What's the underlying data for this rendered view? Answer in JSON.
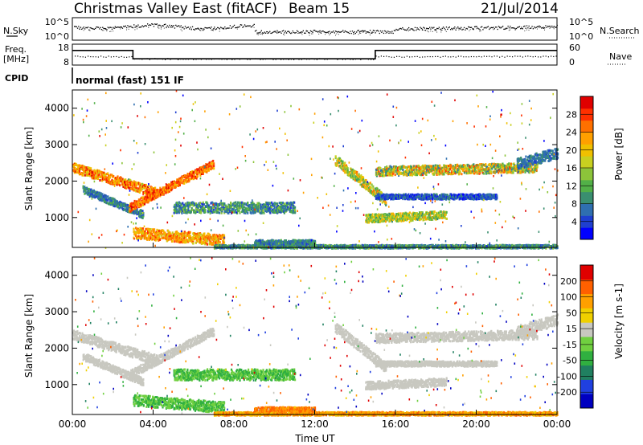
{
  "header": {
    "title": "Christmas Valley East (fitACF)",
    "beam": "Beam 15",
    "date": "21/Jul/2014"
  },
  "chart_data": [
    {
      "type": "line",
      "panel": "noise",
      "left_label": "N.Sky",
      "right_label": "N.Search",
      "left_ticks": [
        "10^5",
        "10^0"
      ],
      "right_ticks": [
        "10^5",
        "10^0"
      ]
    },
    {
      "type": "line",
      "panel": "frequency",
      "left_label_lines": [
        "Freq.",
        "[MHz]"
      ],
      "right_label": "Nave",
      "left_ticks": [
        18,
        8
      ],
      "right_ticks": [
        60,
        0
      ],
      "freq_series": [
        {
          "t": 0.0,
          "v": 15
        },
        {
          "t": 3.0,
          "v": 15
        },
        {
          "t": 3.0,
          "v": 11
        },
        {
          "t": 15.0,
          "v": 11
        },
        {
          "t": 15.0,
          "v": 15
        },
        {
          "t": 24.0,
          "v": 15
        }
      ]
    },
    {
      "type": "table",
      "panel": "cpid",
      "label": "CPID",
      "text": "normal (fast) 151 IF"
    },
    {
      "type": "heatmap",
      "panel": "power",
      "ylabel": "Slant Range [km]",
      "ylim": [
        180,
        4500
      ],
      "yticks": [
        1000,
        2000,
        3000,
        4000
      ],
      "colorbar_label": "Power [dB]",
      "colorbar_ticks": [
        4,
        8,
        12,
        16,
        20,
        24,
        28
      ],
      "colorbar_colors": [
        "#0000ff",
        "#1f3fd0",
        "#2f6fb0",
        "#3a8f70",
        "#52b048",
        "#8cc43a",
        "#c8d020",
        "#f0c000",
        "#ffa000",
        "#ff7000",
        "#ff3000",
        "#e00000"
      ]
    },
    {
      "type": "heatmap",
      "panel": "velocity",
      "ylabel": "Slant Range [km]",
      "ylim": [
        180,
        4500
      ],
      "yticks": [
        1000,
        2000,
        3000,
        4000
      ],
      "colorbar_label": "Velocity [m s-1]",
      "colorbar_ticks": [
        200,
        100,
        50,
        15,
        -15,
        -50,
        -100,
        -200
      ],
      "colorbar_colors": [
        "#0000c0",
        "#2040e0",
        "#208060",
        "#30b040",
        "#70d040",
        "#c8c8c0",
        "#f0d000",
        "#ffa000",
        "#ff6000",
        "#e00000"
      ]
    }
  ],
  "xaxis": {
    "label": "Time UT",
    "ticks": [
      "00:00",
      "04:00",
      "08:00",
      "12:00",
      "16:00",
      "20:00",
      "00:00"
    ],
    "range_hours": [
      0,
      24
    ]
  }
}
